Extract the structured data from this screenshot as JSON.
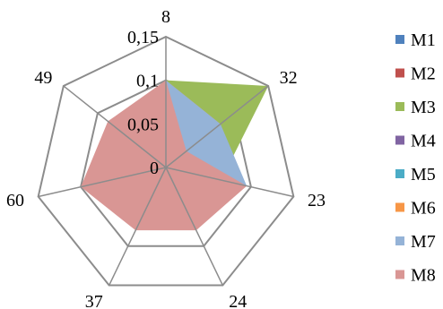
{
  "chart_data": {
    "type": "radar",
    "title": "",
    "categories": [
      "8",
      "32",
      "23",
      "24",
      "37",
      "60",
      "49"
    ],
    "radial_ticks": [
      "0",
      "0,05",
      "0,1",
      "0,15"
    ],
    "rlim": [
      0,
      0.15
    ],
    "grid": true,
    "legend_position": "right",
    "series": [
      {
        "name": "M1",
        "color": "#4F81BD",
        "values": [
          0.1,
          0.07,
          0.0,
          0.0,
          0.0,
          0.0,
          0.0
        ]
      },
      {
        "name": "M2",
        "color": "#C0504D",
        "values": [
          0.1,
          0.08,
          0.0,
          0.0,
          0.0,
          0.0,
          0.0
        ]
      },
      {
        "name": "M3",
        "color": "#9BBB59",
        "values": [
          0.1,
          0.15,
          0.065,
          0.0,
          0.0,
          0.0,
          0.0
        ]
      },
      {
        "name": "M4",
        "color": "#8064A2",
        "values": [
          0.1,
          0.07,
          0.0,
          0.0,
          0.0,
          0.0,
          0.0
        ]
      },
      {
        "name": "M5",
        "color": "#4BACC6",
        "values": [
          0.1,
          0.07,
          0.0,
          0.0,
          0.0,
          0.0,
          0.0
        ]
      },
      {
        "name": "M6",
        "color": "#F79646",
        "values": [
          0.1,
          0.08,
          0.0,
          0.0,
          0.0,
          0.0,
          0.0
        ]
      },
      {
        "name": "M7",
        "color": "#95B3D7",
        "values": [
          0.1,
          0.08,
          0.095,
          0.0,
          0.0,
          0.0,
          0.0
        ]
      },
      {
        "name": "M8",
        "color": "#D99694",
        "values": [
          0.1,
          0.03,
          0.095,
          0.08,
          0.08,
          0.1,
          0.085
        ]
      }
    ]
  }
}
